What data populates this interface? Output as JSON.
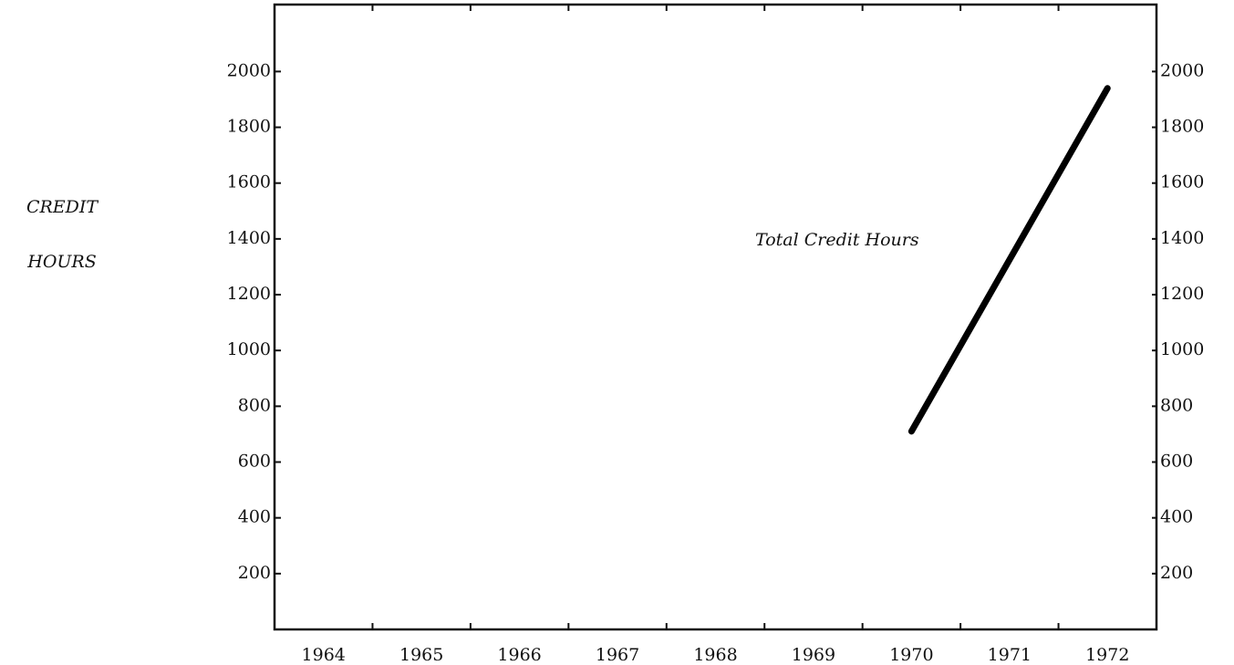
{
  "chart_data": {
    "type": "line",
    "ylabel": [
      "CREDIT",
      "HOURS"
    ],
    "annotation": "Total Credit Hours",
    "x": [
      1970,
      1972
    ],
    "series": [
      {
        "name": "Total Credit Hours",
        "color": "#000000",
        "values": [
          710,
          1940
        ]
      }
    ],
    "xlim": [
      1963.5,
      1972.5
    ],
    "xticks": [
      {
        "value": 1964,
        "label": "1964"
      },
      {
        "value": 1965,
        "label": "1965"
      },
      {
        "value": 1966,
        "label": "1966"
      },
      {
        "value": 1967,
        "label": "1967"
      },
      {
        "value": 1968,
        "label": "1968"
      },
      {
        "value": 1969,
        "label": "1969"
      },
      {
        "value": 1970,
        "label": "1970"
      },
      {
        "value": 1971,
        "label": "1971"
      },
      {
        "value": 1972,
        "label": "1972"
      }
    ],
    "xminor_ticks": [
      1964.5,
      1965.5,
      1966.5,
      1967.5,
      1968.5,
      1969.5,
      1970.5,
      1971.5
    ],
    "ylim": [
      0,
      2240
    ],
    "yticks": [
      200,
      400,
      600,
      800,
      1000,
      1200,
      1400,
      1600,
      1800,
      2000
    ],
    "y2lim": [
      0,
      2240
    ],
    "y2ticks": [
      200,
      400,
      600,
      800,
      1000,
      1200,
      1400,
      1600,
      1800,
      2000
    ],
    "grid": false
  }
}
